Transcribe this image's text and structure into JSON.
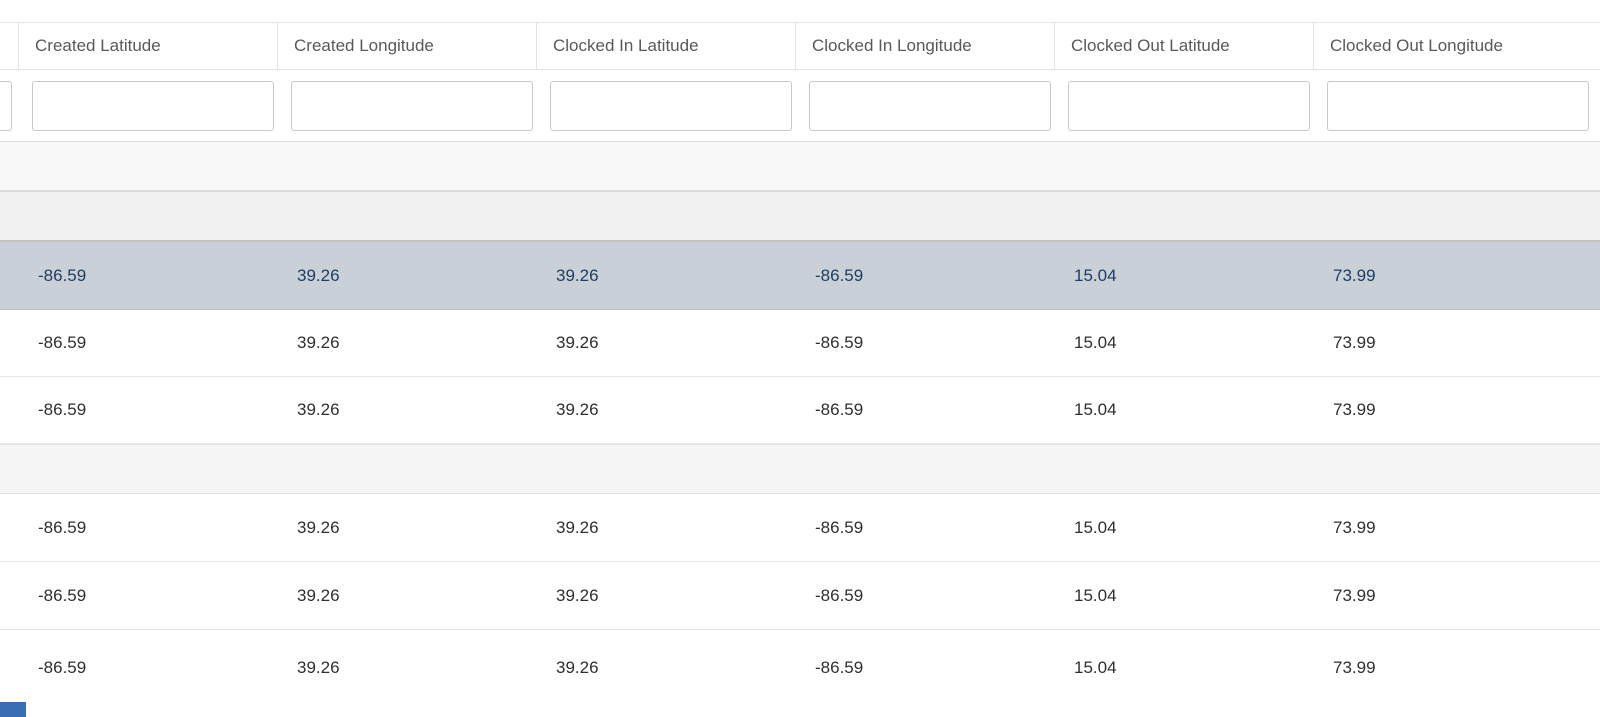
{
  "grid": {
    "columns": [
      {
        "label": "Created Latitude"
      },
      {
        "label": "Created Longitude"
      },
      {
        "label": "Clocked In Latitude"
      },
      {
        "label": "Clocked In Longitude"
      },
      {
        "label": "Clocked Out Latitude"
      },
      {
        "label": "Clocked Out Longitude"
      }
    ],
    "filter": {
      "value": "",
      "placeholder": ""
    },
    "rows": [
      {
        "type": "placeholder",
        "values": [
          "",
          "",
          "",
          "",
          "",
          ""
        ]
      },
      {
        "type": "placeholder",
        "values": [
          "",
          "",
          "",
          "",
          "",
          ""
        ]
      },
      {
        "type": "selected",
        "values": [
          "-86.59",
          "39.26",
          "39.26",
          "-86.59",
          "15.04",
          "73.99"
        ]
      },
      {
        "type": "data",
        "values": [
          "-86.59",
          "39.26",
          "39.26",
          "-86.59",
          "15.04",
          "73.99"
        ]
      },
      {
        "type": "data",
        "values": [
          "-86.59",
          "39.26",
          "39.26",
          "-86.59",
          "15.04",
          "73.99"
        ]
      },
      {
        "type": "placeholder",
        "values": [
          "",
          "",
          "",
          "",
          "",
          ""
        ]
      },
      {
        "type": "data",
        "values": [
          "-86.59",
          "39.26",
          "39.26",
          "-86.59",
          "15.04",
          "73.99"
        ]
      },
      {
        "type": "data",
        "values": [
          "-86.59",
          "39.26",
          "39.26",
          "-86.59",
          "15.04",
          "73.99"
        ]
      },
      {
        "type": "data",
        "values": [
          "-86.59",
          "39.26",
          "39.26",
          "-86.59",
          "15.04",
          "73.99"
        ]
      }
    ],
    "colors": {
      "selected_row_bg": "#c9d0d8",
      "selected_row_text": "#1e3c5f",
      "placeholder_row_bg": "#f5f5f5",
      "header_text": "#595959",
      "cell_text": "#2f2f2f",
      "corner_accent_blue": "#3a6db3"
    }
  }
}
